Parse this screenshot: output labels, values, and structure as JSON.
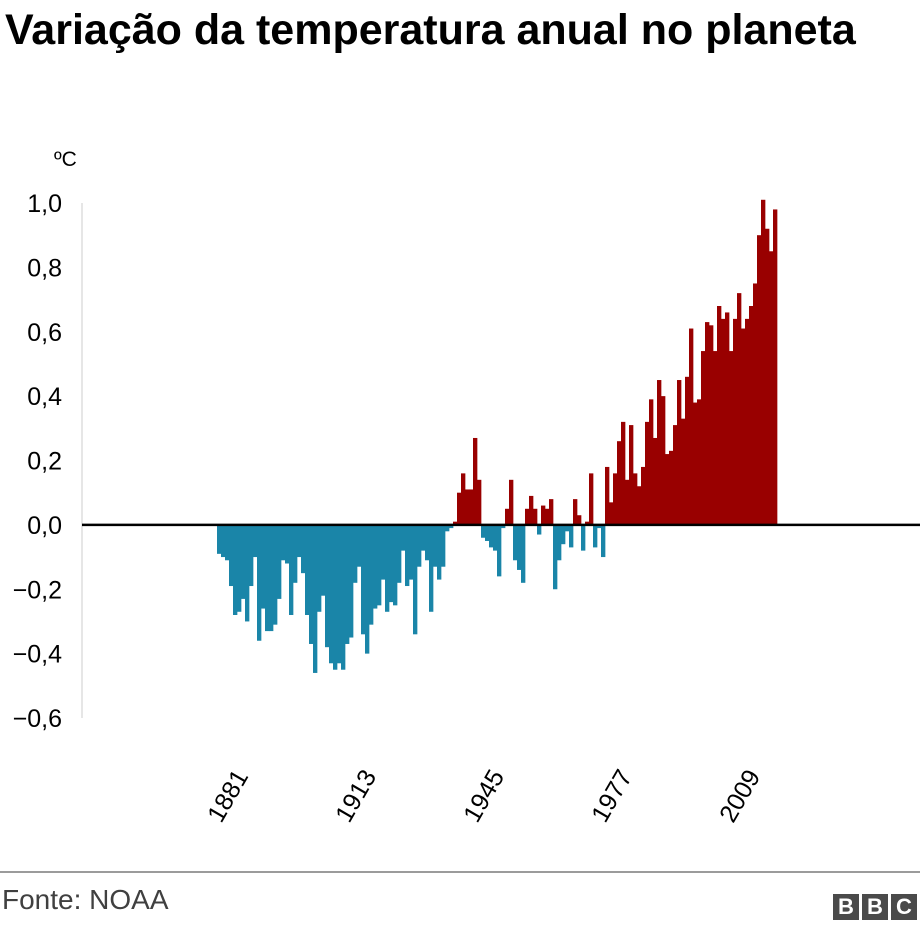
{
  "title": "Variação da temperatura anual no planeta",
  "unit_label": "ºC",
  "source": "Fonte: NOAA",
  "logo": [
    "B",
    "B",
    "C"
  ],
  "colors": {
    "positive": "#990000",
    "negative": "#1a85a8",
    "zero_line": "#000000",
    "axis": "#cccccc",
    "text": "#000000"
  },
  "chart_data": {
    "type": "bar",
    "title": "Variação da temperatura anual no planeta",
    "ylabel": "ºC",
    "xlabel": "",
    "ylim": [
      -0.6,
      1.0
    ],
    "yticks": [
      1.0,
      0.8,
      0.6,
      0.4,
      0.2,
      0.0,
      -0.2,
      -0.4,
      -0.6
    ],
    "ytick_labels": [
      "1,0",
      "0,8",
      "0,6",
      "0,4",
      "0,2",
      "0,0",
      "−0,2",
      "−0,4",
      "−0,6"
    ],
    "xticks": [
      1881,
      1913,
      1945,
      1977,
      2009
    ],
    "x_start": 1880,
    "x_end": 2019,
    "x": [
      1880,
      1881,
      1882,
      1883,
      1884,
      1885,
      1886,
      1887,
      1888,
      1889,
      1890,
      1891,
      1892,
      1893,
      1894,
      1895,
      1896,
      1897,
      1898,
      1899,
      1900,
      1901,
      1902,
      1903,
      1904,
      1905,
      1906,
      1907,
      1908,
      1909,
      1910,
      1911,
      1912,
      1913,
      1914,
      1915,
      1916,
      1917,
      1918,
      1919,
      1920,
      1921,
      1922,
      1923,
      1924,
      1925,
      1926,
      1927,
      1928,
      1929,
      1930,
      1931,
      1932,
      1933,
      1934,
      1935,
      1936,
      1937,
      1938,
      1939,
      1940,
      1941,
      1942,
      1943,
      1944,
      1945,
      1946,
      1947,
      1948,
      1949,
      1950,
      1951,
      1952,
      1953,
      1954,
      1955,
      1956,
      1957,
      1958,
      1959,
      1960,
      1961,
      1962,
      1963,
      1964,
      1965,
      1966,
      1967,
      1968,
      1969,
      1970,
      1971,
      1972,
      1973,
      1974,
      1975,
      1976,
      1977,
      1978,
      1979,
      1980,
      1981,
      1982,
      1983,
      1984,
      1985,
      1986,
      1987,
      1988,
      1989,
      1990,
      1991,
      1992,
      1993,
      1994,
      1995,
      1996,
      1997,
      1998,
      1999,
      2000,
      2001,
      2002,
      2003,
      2004,
      2005,
      2006,
      2007,
      2008,
      2009,
      2010,
      2011,
      2012,
      2013,
      2014,
      2015,
      2016,
      2017,
      2018,
      2019
    ],
    "values": [
      -0.09,
      -0.1,
      -0.11,
      -0.19,
      -0.28,
      -0.27,
      -0.23,
      -0.3,
      -0.19,
      -0.1,
      -0.36,
      -0.26,
      -0.33,
      -0.33,
      -0.31,
      -0.23,
      -0.11,
      -0.12,
      -0.28,
      -0.18,
      -0.1,
      -0.15,
      -0.28,
      -0.37,
      -0.46,
      -0.27,
      -0.22,
      -0.38,
      -0.43,
      -0.45,
      -0.43,
      -0.45,
      -0.37,
      -0.35,
      -0.18,
      -0.13,
      -0.34,
      -0.4,
      -0.31,
      -0.26,
      -0.25,
      -0.17,
      -0.27,
      -0.24,
      -0.25,
      -0.18,
      -0.08,
      -0.19,
      -0.17,
      -0.34,
      -0.13,
      -0.08,
      -0.11,
      -0.27,
      -0.13,
      -0.17,
      -0.13,
      -0.02,
      -0.01,
      0.01,
      0.1,
      0.16,
      0.11,
      0.11,
      0.27,
      0.14,
      -0.04,
      -0.05,
      -0.07,
      -0.08,
      -0.16,
      -0.01,
      0.05,
      0.14,
      -0.11,
      -0.14,
      -0.18,
      0.05,
      0.09,
      0.05,
      -0.03,
      0.06,
      0.05,
      0.08,
      -0.2,
      -0.11,
      -0.06,
      -0.02,
      -0.07,
      0.08,
      0.03,
      -0.08,
      0.01,
      0.16,
      -0.07,
      -0.01,
      -0.1,
      0.18,
      0.07,
      0.16,
      0.26,
      0.32,
      0.14,
      0.31,
      0.16,
      0.12,
      0.18,
      0.32,
      0.39,
      0.27,
      0.45,
      0.4,
      0.22,
      0.23,
      0.31,
      0.45,
      0.33,
      0.46,
      0.61,
      0.38,
      0.39,
      0.54,
      0.63,
      0.62,
      0.54,
      0.68,
      0.64,
      0.66,
      0.54,
      0.64,
      0.72,
      0.61,
      0.64,
      0.68,
      0.75,
      0.9,
      1.01,
      0.92,
      0.85,
      0.98
    ]
  }
}
